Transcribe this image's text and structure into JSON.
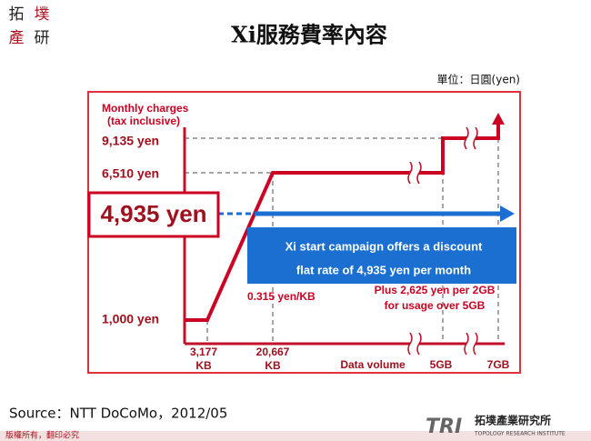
{
  "header": {
    "title": "Xi服務費率內容",
    "logo": [
      "拓",
      "墣",
      "產",
      "研"
    ]
  },
  "unit": "單位：日圓(yen)",
  "diagram": {
    "y_axis_title": [
      "Monthly charges",
      "(tax inclusive)"
    ],
    "y_labels": [
      "9,135 yen",
      "6,510 yen",
      "1,000 yen"
    ],
    "highlight": "4,935 yen",
    "x_labels": [
      [
        "3,177",
        "KB"
      ],
      [
        "20,667",
        "KB"
      ]
    ],
    "x_axis_title": "Data volume",
    "x_gb_labels": [
      "5GB",
      "7GB"
    ],
    "slope_note": "0.315 yen/KB",
    "campaign": [
      "Xi start campaign offers a discount",
      "flat rate of 4,935 yen per month"
    ],
    "extra_note": [
      "Plus 2,625 yen per 2GB",
      "for usage over 5GB"
    ]
  },
  "source": "Source：NTT DoCoMo，2012/05",
  "footer": {
    "copyright": "版權所有，翻印必究",
    "org_abbr": "TRI",
    "org_name": "拓墣產業研究所",
    "org_en": "TOPOLOGY RESEARCH INSTITUTE"
  }
}
